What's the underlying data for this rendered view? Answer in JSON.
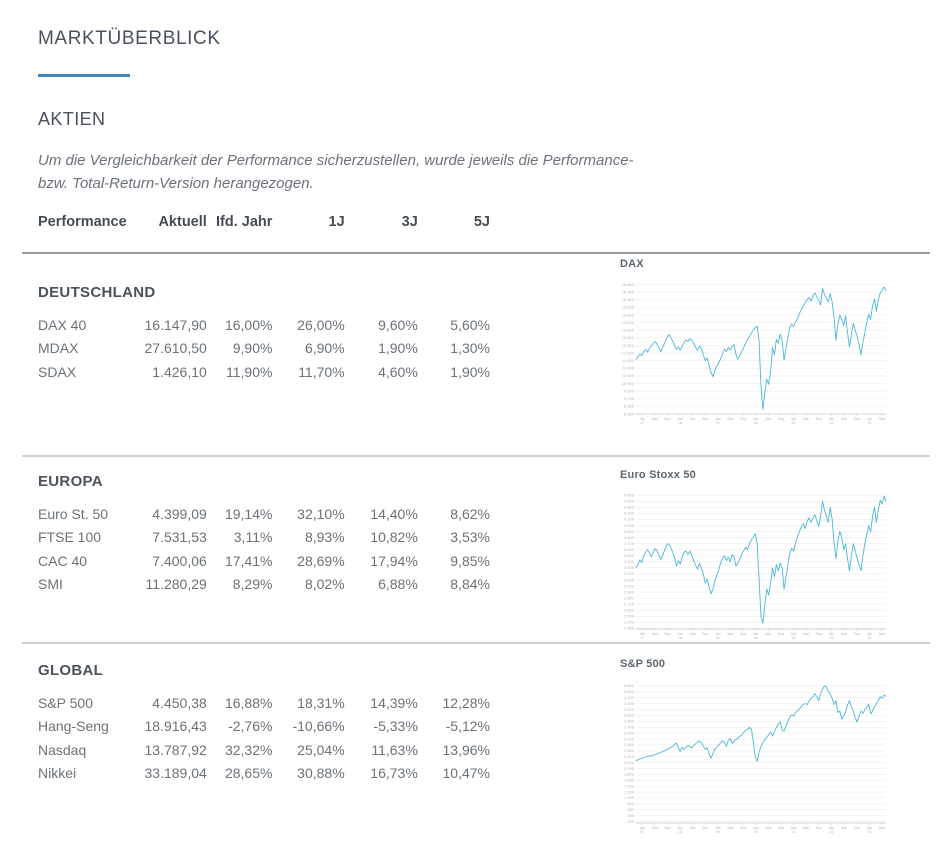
{
  "page": {
    "title": "MARKTÜBERBLICK",
    "accent_color": "#4187c0"
  },
  "section": {
    "heading": "AKTIEN"
  },
  "disclaimer": {
    "line1": "Um die Vergleichbarkeit der Performance sicherzustellen, wurde jeweils die Performance-",
    "line2": "bzw. Total-Return-Version herangezogen."
  },
  "table": {
    "headers": [
      "Performance",
      "Aktuell",
      "Ifd. Jahr",
      "1J",
      "3J",
      "5J"
    ],
    "groups": [
      {
        "name": "DEUTSCHLAND",
        "rows": [
          {
            "label": "DAX 40",
            "values": [
              "16.147,90",
              "16,00%",
              "26,00%",
              "9,60%",
              "5,60%"
            ]
          },
          {
            "label": "MDAX",
            "values": [
              "27.610,50",
              "9,90%",
              "6,90%",
              "1,90%",
              "1,30%"
            ]
          },
          {
            "label": "SDAX",
            "values": [
              "1.426,10",
              "11,90%",
              "11,70%",
              "4,60%",
              "1,90%"
            ]
          }
        ]
      },
      {
        "name": "EUROPA",
        "rows": [
          {
            "label": "Euro St. 50",
            "values": [
              "4.399,09",
              "19,14%",
              "32,10%",
              "14,40%",
              "8,62%"
            ]
          },
          {
            "label": "FTSE 100",
            "values": [
              "7.531,53",
              "3,11%",
              "8,93%",
              "10,82%",
              "3,53%"
            ]
          },
          {
            "label": "CAC 40",
            "values": [
              "7.400,06",
              "17,41%",
              "28,69%",
              "17,94%",
              "9,85%"
            ]
          },
          {
            "label": "SMI",
            "values": [
              "11.280,29",
              "8,29%",
              "8,02%",
              "6,88%",
              "8,84%"
            ]
          }
        ]
      },
      {
        "name": "GLOBAL",
        "rows": [
          {
            "label": "S&P 500",
            "values": [
              "4.450,38",
              "16,88%",
              "18,31%",
              "14,39%",
              "12,28%"
            ]
          },
          {
            "label": "Hang-Seng",
            "values": [
              "18.916,43",
              "-2,76%",
              "-10,66%",
              "-5,33%",
              "-5,12%"
            ]
          },
          {
            "label": "Nasdaq",
            "values": [
              "13.787,92",
              "32,32%",
              "25,04%",
              "11,63%",
              "13,96%"
            ]
          },
          {
            "label": "Nikkei",
            "values": [
              "33.189,04",
              "28,65%",
              "30,88%",
              "16,73%",
              "10,47%"
            ]
          }
        ]
      }
    ]
  },
  "chart_style": {
    "line_color": "#4db7d8",
    "grid_color": "#ededed",
    "axis_color": "#c9c9c9",
    "label_color": "#b5b5b5"
  },
  "chart_data": [
    {
      "type": "line",
      "title": "DAX",
      "ymin": 8000,
      "ymax": 16600,
      "y_labels": [
        "16.500",
        "16.000",
        "15.500",
        "15.000",
        "14.500",
        "14.000",
        "13.500",
        "13.000",
        "12.500",
        "12.000",
        "11.500",
        "11.000",
        "10.500",
        "10.000",
        "9.500",
        "9.000",
        "8.500",
        "8.000"
      ],
      "x_labels": [
        "Jan|17",
        "Mai",
        "Sep",
        "Jan|18",
        "Mai",
        "Sep",
        "Jan|19",
        "Mai",
        "Sep",
        "Jan|20",
        "Mai",
        "Sep",
        "Jan|21",
        "Mai",
        "Sep",
        "Jan|22",
        "Mai",
        "Sep",
        "Jan|23",
        "Mai"
      ],
      "values": [
        11600,
        11750,
        11920,
        11840,
        12100,
        12230,
        12060,
        12310,
        12490,
        12640,
        12750,
        12580,
        12300,
        12100,
        12390,
        12700,
        12980,
        13200,
        13050,
        12800,
        12520,
        12250,
        12400,
        12180,
        12460,
        12700,
        12880,
        12760,
        12950,
        12840,
        12620,
        12380,
        12180,
        12460,
        12280,
        11900,
        11500,
        11680,
        11200,
        10750,
        10450,
        10850,
        11150,
        11380,
        11600,
        11950,
        12250,
        12100,
        12380,
        12200,
        12450,
        12550,
        11900,
        11600,
        11850,
        12100,
        12350,
        12650,
        12900,
        13100,
        13300,
        13500,
        13650,
        13750,
        12800,
        9800,
        8300,
        9400,
        10300,
        9950,
        10800,
        12350,
        11900,
        12900,
        12650,
        13250,
        12800,
        11550,
        12350,
        13050,
        13700,
        13900,
        13750,
        14050,
        14300,
        14600,
        14850,
        15100,
        15300,
        15500,
        15650,
        15400,
        15750,
        15950,
        15700,
        15450,
        15150,
        16250,
        15850,
        15600,
        15350,
        15900,
        15350,
        14300,
        12830,
        13900,
        14500,
        14200,
        13800,
        14450,
        13350,
        12400,
        13200,
        13950,
        13500,
        13100,
        12550,
        11900,
        12700,
        13350,
        14000,
        14550,
        14200,
        15100,
        15550,
        14750,
        15500,
        15950,
        16100,
        16350,
        16100
      ]
    },
    {
      "type": "line",
      "title": "Euro Stoxx 50",
      "ymin": 2290,
      "ymax": 4520,
      "y_labels": [
        "4.500",
        "4.400",
        "4.300",
        "4.200",
        "4.100",
        "4.000",
        "3.900",
        "3.800",
        "3.700",
        "3.600",
        "3.500",
        "3.400",
        "3.300",
        "3.200",
        "3.100",
        "3.000",
        "2.900",
        "2.800",
        "2.700",
        "2.600",
        "2.500",
        "2.400",
        "2.300"
      ],
      "x_labels": [
        "Jan|17",
        "Mai",
        "Sep",
        "Jan|18",
        "Mai",
        "Sep",
        "Jan|19",
        "Mai",
        "Sep",
        "Jan|20",
        "Mai",
        "Sep",
        "Jan|21",
        "Mai",
        "Sep",
        "Jan|22",
        "Mai",
        "Sep",
        "Jan|23",
        "Mai"
      ],
      "values": [
        3300,
        3360,
        3430,
        3390,
        3500,
        3560,
        3600,
        3540,
        3480,
        3560,
        3620,
        3580,
        3500,
        3440,
        3520,
        3600,
        3680,
        3700,
        3640,
        3560,
        3480,
        3330,
        3420,
        3360,
        3480,
        3560,
        3580,
        3520,
        3580,
        3500,
        3420,
        3340,
        3280,
        3380,
        3300,
        3200,
        3050,
        3120,
        2980,
        2870,
        2950,
        3080,
        3180,
        3260,
        3380,
        3460,
        3500,
        3420,
        3480,
        3400,
        3520,
        3480,
        3330,
        3380,
        3450,
        3530,
        3580,
        3640,
        3600,
        3700,
        3760,
        3810,
        3865,
        3700,
        3100,
        2500,
        2385,
        2700,
        2950,
        2850,
        3050,
        3300,
        3150,
        3350,
        3250,
        3380,
        3300,
        2950,
        3150,
        3350,
        3550,
        3620,
        3580,
        3720,
        3820,
        3900,
        3980,
        4030,
        3950,
        4070,
        4130,
        4050,
        4120,
        4180,
        4080,
        3980,
        4150,
        4400,
        4250,
        4150,
        4050,
        4300,
        4100,
        3700,
        3450,
        3750,
        3900,
        3800,
        3600,
        3700,
        3450,
        3250,
        3500,
        3700,
        3580,
        3450,
        3350,
        3250,
        3500,
        3700,
        3850,
        4000,
        3900,
        4150,
        4300,
        4050,
        4250,
        4420,
        4350,
        4480,
        4400
      ]
    },
    {
      "type": "line",
      "title": "S&P 500",
      "ymin": 150,
      "ymax": 4900,
      "y_labels": [
        "4.800",
        "4.600",
        "4.400",
        "4.200",
        "4.000",
        "3.800",
        "3.600",
        "3.400",
        "3.200",
        "3.000",
        "2.800",
        "2.600",
        "2.400",
        "2.200",
        "2.000",
        "1.800",
        "1.600",
        "1.400",
        "1.200",
        "1.000",
        "800",
        "600",
        "400",
        "200"
      ],
      "x_labels": [
        "Jan|17",
        "Mai",
        "Sep",
        "Jan|18",
        "Mai",
        "Sep",
        "Jan|19",
        "Mai",
        "Sep",
        "Jan|20",
        "Mai",
        "Sep",
        "Jan|21",
        "Mai",
        "Sep",
        "Jan|22",
        "Mai",
        "Sep",
        "Jan|23",
        "Mai"
      ],
      "values": [
        2270,
        2290,
        2320,
        2340,
        2360,
        2390,
        2410,
        2430,
        2425,
        2455,
        2470,
        2500,
        2520,
        2550,
        2575,
        2600,
        2640,
        2680,
        2700,
        2750,
        2810,
        2870,
        2700,
        2580,
        2720,
        2650,
        2720,
        2780,
        2740,
        2700,
        2780,
        2840,
        2900,
        2930,
        2880,
        2760,
        2650,
        2700,
        2500,
        2350,
        2510,
        2650,
        2720,
        2800,
        2870,
        2940,
        2900,
        2750,
        2950,
        3020,
        2850,
        2920,
        2980,
        3030,
        3090,
        3140,
        3230,
        3290,
        3340,
        3390,
        3340,
        2900,
        2400,
        2237,
        2550,
        2750,
        2870,
        2980,
        3060,
        3150,
        3230,
        3100,
        3270,
        3390,
        3500,
        3580,
        3300,
        3270,
        3450,
        3600,
        3750,
        3820,
        3780,
        3900,
        3960,
        4020,
        4100,
        4180,
        4200,
        4170,
        4290,
        4380,
        4440,
        4540,
        4440,
        4300,
        4550,
        4680,
        4800,
        4770,
        4620,
        4520,
        4380,
        4170,
        4300,
        3900,
        3950,
        3670,
        3780,
        3920,
        4150,
        4300,
        4100,
        3950,
        3720,
        3580,
        3780,
        3950,
        3870,
        4000,
        4080,
        4180,
        3850,
        3950,
        4080,
        4200,
        4320,
        4430,
        4380,
        4490,
        4450
      ]
    }
  ]
}
